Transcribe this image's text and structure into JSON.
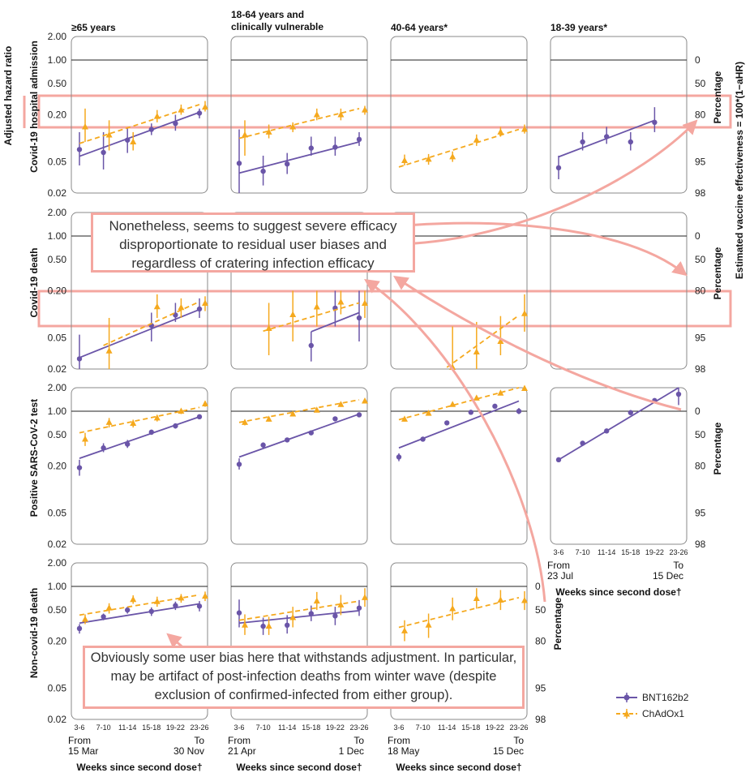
{
  "colors": {
    "bnt": "#6a55a8",
    "chad": "#f5a91e",
    "annotation": "#f4a7a0",
    "frame": "#8a8a8a"
  },
  "labels": {
    "yleft_outer": "Adjusted hazard ratio",
    "yright_outer": "Estimated vaccine effectiveness = 100*(1−aHR)",
    "percentage": "Percentage",
    "xlabel": "Weeks since second dose†"
  },
  "annotations": {
    "top": "Nonetheless, seems to suggest severe efficacy disproportionate to residual user biases and regardless of cratering infection efficacy",
    "bottom": "Obviously some user bias here that withstands adjustment. In particular, may be artifact of post-infection deaths from winter wave (despite exclusion of confirmed-infected from either group)."
  },
  "chart_data": {
    "type": "scatter",
    "yscale": "log",
    "ylim": [
      0.02,
      2.0
    ],
    "yticks": [
      "2.00",
      "1.00",
      "0.50",
      "0.20",
      "0.05",
      "0.02"
    ],
    "ve_ticks": [
      "0",
      "50",
      "80",
      "95",
      "98"
    ],
    "categories": [
      "3-6",
      "7-10",
      "11-14",
      "15-18",
      "19-22",
      "23-26"
    ],
    "legend": [
      {
        "key": "bnt",
        "name": "BNT162b2"
      },
      {
        "key": "chad",
        "name": "ChAdOx1"
      }
    ],
    "columns": [
      {
        "title": "≥65 years",
        "from": "From\n15 Mar",
        "to": "To\n30 Nov"
      },
      {
        "title": "18-64 years and\nclinically vulnerable",
        "from": "From\n21 Apr",
        "to": "To\n1 Dec"
      },
      {
        "title": "40-64 years*",
        "from": "From\n18 May",
        "to": "To\n15 Dec"
      },
      {
        "title": "18-39 years*",
        "from": "From\n23 Jul",
        "to": "To\n15 Dec"
      }
    ],
    "rows": [
      {
        "label": "Covid-19 hospital admission"
      },
      {
        "label": "Covid-19 death"
      },
      {
        "label": "Positive SARS-CoV-2 test"
      },
      {
        "label": "Non-covid-19 death"
      }
    ],
    "panels": [
      {
        "row": 0,
        "col": 0,
        "series": [
          {
            "key": "bnt",
            "values": [
              0.072,
              0.066,
              0.095,
              0.13,
              0.155,
              0.21
            ],
            "lower": [
              0.045,
              0.04,
              0.065,
              0.11,
              0.125,
              0.18
            ],
            "upper": [
              0.12,
              0.12,
              0.135,
              0.155,
              0.2,
              0.24
            ],
            "fit": [
              0.059,
              0.215
            ]
          },
          {
            "key": "chad",
            "values": [
              0.14,
              0.11,
              0.09,
              0.19,
              0.23,
              0.25
            ],
            "lower": [
              0.09,
              0.07,
              0.07,
              0.16,
              0.2,
              0.22
            ],
            "upper": [
              0.24,
              0.17,
              0.12,
              0.23,
              0.27,
              0.3
            ],
            "fit": [
              0.086,
              0.27
            ]
          }
        ]
      },
      {
        "row": 0,
        "col": 1,
        "series": [
          {
            "key": "bnt",
            "values": [
              0.048,
              0.038,
              0.047,
              0.075,
              0.077,
              0.097
            ],
            "lower": [
              0.02,
              0.025,
              0.035,
              0.06,
              0.06,
              0.08
            ],
            "upper": [
              0.13,
              0.06,
              0.065,
              0.105,
              0.105,
              0.12
            ],
            "fit": [
              0.036,
              0.09
            ]
          },
          {
            "key": "chad",
            "values": [
              0.11,
              0.12,
              0.14,
              0.2,
              0.2,
              0.23
            ],
            "lower": [
              0.06,
              0.1,
              0.12,
              0.17,
              0.17,
              0.2
            ],
            "upper": [
              0.17,
              0.15,
              0.16,
              0.24,
              0.24,
              0.26
            ],
            "fit": [
              0.1,
              0.24
            ]
          }
        ]
      },
      {
        "row": 0,
        "col": 2,
        "series": [
          {
            "key": "chad",
            "values": [
              0.052,
              0.054,
              0.058,
              0.095,
              0.12,
              0.13
            ],
            "lower": [
              0.045,
              0.046,
              0.05,
              0.08,
              0.105,
              0.115
            ],
            "upper": [
              0.062,
              0.063,
              0.068,
              0.112,
              0.14,
              0.15
            ],
            "fit": [
              0.043,
              0.13
            ]
          }
        ]
      },
      {
        "row": 0,
        "col": 3,
        "series": [
          {
            "key": "bnt",
            "values": [
              0.042,
              0.09,
              0.105,
              0.09,
              0.16
            ],
            "lower": [
              0.03,
              0.07,
              0.085,
              0.07,
              0.12
            ],
            "upper": [
              0.06,
              0.12,
              0.14,
              0.12,
              0.25
            ],
            "fit": [
              0.058,
              0.17
            ]
          }
        ]
      },
      {
        "row": 1,
        "col": 0,
        "series": [
          {
            "key": "bnt",
            "values": [
              0.027,
              0.072,
              0.098,
              0.117
            ],
            "lower": [
              0.02,
              0.045,
              0.08,
              0.09
            ],
            "upper": [
              0.055,
              0.105,
              0.14,
              0.16
            ],
            "labels": [
              "3-6",
              "15-18",
              "19-22",
              "23-26"
            ],
            "fit": [
              0.028,
              0.115
            ]
          },
          {
            "key": "chad",
            "values": [
              0.034,
              0.125,
              0.122,
              0.138
            ],
            "lower": [
              0.02,
              0.09,
              0.09,
              0.11
            ],
            "upper": [
              0.09,
              0.18,
              0.16,
              0.17
            ],
            "labels": [
              "7-10",
              "15-18",
              "19-22",
              "23-26"
            ],
            "fit": [
              0.04,
              0.145
            ]
          }
        ]
      },
      {
        "row": 1,
        "col": 1,
        "series": [
          {
            "key": "bnt",
            "values": [
              0.04,
              0.12,
              0.09
            ],
            "lower": [
              0.025,
              0.07,
              0.045
            ],
            "upper": [
              0.06,
              0.2,
              0.2
            ],
            "labels": [
              "15-18",
              "19-22",
              "23-26"
            ],
            "fit": [
              0.06,
              0.105
            ]
          },
          {
            "key": "chad",
            "values": [
              0.066,
              0.099,
              0.124,
              0.143,
              0.138
            ],
            "lower": [
              0.03,
              0.045,
              0.07,
              0.1,
              0.09
            ],
            "upper": [
              0.14,
              0.2,
              0.2,
              0.2,
              0.2
            ],
            "labels": [
              "7-10",
              "11-14",
              "15-18",
              "19-22",
              "23-26"
            ],
            "fit": [
              0.061,
              0.14
            ]
          }
        ]
      },
      {
        "row": 1,
        "col": 2,
        "series": [
          {
            "key": "chad",
            "values": [
              0.021,
              0.033,
              0.045,
              0.102
            ],
            "lower": [
              0.02,
              0.02,
              0.03,
              0.06
            ],
            "upper": [
              0.07,
              0.08,
              0.095,
              0.18
            ],
            "labels": [
              "11-14",
              "15-18",
              "19-22",
              "23-26"
            ],
            "fit": [
              0.021,
              0.097
            ]
          }
        ]
      },
      {
        "row": 2,
        "col": 0,
        "series": [
          {
            "key": "bnt",
            "values": [
              0.19,
              0.34,
              0.38,
              0.54,
              0.65,
              0.85
            ],
            "lower": [
              0.15,
              0.3,
              0.34,
              0.5,
              0.6,
              0.79
            ],
            "upper": [
              0.24,
              0.39,
              0.43,
              0.58,
              0.7,
              0.91
            ],
            "fit": [
              0.25,
              0.85
            ]
          },
          {
            "key": "chad",
            "values": [
              0.44,
              0.72,
              0.7,
              0.82,
              1.0,
              1.24
            ],
            "lower": [
              0.36,
              0.62,
              0.62,
              0.74,
              0.92,
              1.14
            ],
            "upper": [
              0.53,
              0.82,
              0.78,
              0.9,
              1.08,
              1.35
            ],
            "fit": [
              0.53,
              1.12
            ]
          }
        ]
      },
      {
        "row": 2,
        "col": 1,
        "series": [
          {
            "key": "bnt",
            "values": [
              0.21,
              0.37,
              0.43,
              0.53,
              0.8,
              0.9
            ],
            "lower": [
              0.18,
              0.34,
              0.41,
              0.51,
              0.77,
              0.87
            ],
            "upper": [
              0.25,
              0.4,
              0.45,
              0.55,
              0.83,
              0.93
            ],
            "fit": [
              0.26,
              0.92
            ]
          },
          {
            "key": "chad",
            "values": [
              0.72,
              0.79,
              0.92,
              1.03,
              1.22,
              1.35
            ],
            "lower": [
              0.66,
              0.74,
              0.88,
              0.99,
              1.15,
              1.28
            ],
            "upper": [
              0.78,
              0.84,
              0.96,
              1.07,
              1.3,
              1.43
            ],
            "fit": [
              0.72,
              1.4
            ]
          }
        ]
      },
      {
        "row": 2,
        "col": 2,
        "series": [
          {
            "key": "bnt",
            "values": [
              0.26,
              0.44,
              0.71,
              0.97,
              1.16,
              1.0
            ],
            "lower": [
              0.23,
              0.41,
              0.67,
              0.93,
              1.12,
              0.92
            ],
            "upper": [
              0.29,
              0.47,
              0.75,
              1.01,
              1.2,
              1.1
            ],
            "fit": [
              0.34,
              1.35
            ]
          },
          {
            "key": "chad",
            "values": [
              0.79,
              0.94,
              1.22,
              1.47,
              1.7,
              1.95
            ],
            "lower": [
              0.74,
              0.9,
              1.15,
              1.4,
              1.6,
              1.88
            ],
            "upper": [
              0.84,
              0.98,
              1.3,
              1.55,
              1.8,
              2.0
            ],
            "fit": [
              0.78,
              2.0
            ]
          }
        ]
      },
      {
        "row": 2,
        "col": 3,
        "series": [
          {
            "key": "bnt",
            "values": [
              0.24,
              0.39,
              0.56,
              0.96,
              1.37,
              1.65
            ],
            "lower": [
              0.23,
              0.37,
              0.54,
              0.93,
              1.32,
              1.2
            ],
            "upper": [
              0.25,
              0.41,
              0.58,
              0.99,
              1.42,
              2.0
            ],
            "fit": [
              0.24,
              2.0
            ]
          }
        ]
      },
      {
        "row": 3,
        "col": 0,
        "series": [
          {
            "key": "bnt",
            "values": [
              0.29,
              0.41,
              0.5,
              0.48,
              0.57,
              0.56
            ],
            "lower": [
              0.25,
              0.37,
              0.45,
              0.42,
              0.5,
              0.48
            ],
            "upper": [
              0.33,
              0.45,
              0.55,
              0.54,
              0.64,
              0.65
            ],
            "fit": [
              0.34,
              0.6
            ]
          },
          {
            "key": "chad",
            "values": [
              0.38,
              0.53,
              0.68,
              0.64,
              0.71,
              0.75
            ],
            "lower": [
              0.33,
              0.45,
              0.6,
              0.55,
              0.62,
              0.65
            ],
            "upper": [
              0.44,
              0.61,
              0.77,
              0.74,
              0.8,
              0.86
            ],
            "fit": [
              0.43,
              0.78
            ]
          }
        ]
      },
      {
        "row": 3,
        "col": 1,
        "series": [
          {
            "key": "bnt",
            "values": [
              0.46,
              0.31,
              0.32,
              0.45,
              0.42,
              0.53
            ],
            "lower": [
              0.3,
              0.24,
              0.25,
              0.36,
              0.32,
              0.42
            ],
            "upper": [
              0.68,
              0.4,
              0.43,
              0.57,
              0.55,
              0.67
            ],
            "fit": [
              0.34,
              0.49
            ]
          },
          {
            "key": "chad",
            "values": [
              0.32,
              0.31,
              0.4,
              0.65,
              0.58,
              0.72
            ],
            "lower": [
              0.24,
              0.24,
              0.3,
              0.5,
              0.43,
              0.55
            ],
            "upper": [
              0.44,
              0.41,
              0.55,
              0.85,
              0.78,
              0.95
            ],
            "fit": [
              0.37,
              0.65
            ]
          }
        ]
      },
      {
        "row": 3,
        "col": 2,
        "series": [
          {
            "key": "chad",
            "values": [
              0.27,
              0.32,
              0.52,
              0.7,
              0.67,
              0.66
            ],
            "lower": [
              0.2,
              0.22,
              0.37,
              0.52,
              0.5,
              0.5
            ],
            "upper": [
              0.37,
              0.45,
              0.72,
              0.95,
              0.9,
              0.87
            ],
            "fit": [
              0.3,
              0.72
            ]
          }
        ]
      }
    ]
  }
}
